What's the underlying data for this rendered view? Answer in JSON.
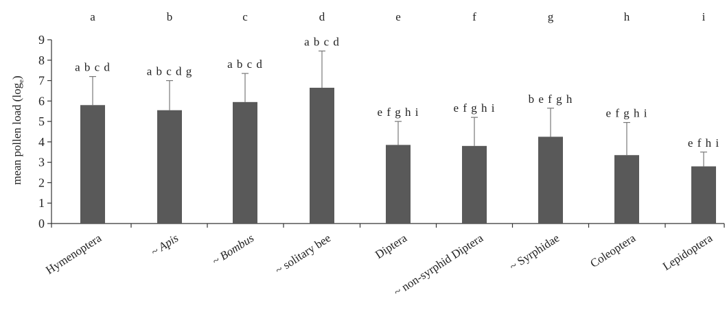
{
  "chart_data": {
    "type": "bar",
    "title": "",
    "xlabel": "",
    "ylabel": "mean pollen load (log",
    "ylabel_subscript": "e",
    "ylabel_close": ")",
    "ylim": [
      0,
      9
    ],
    "yticks": [
      "0",
      "1",
      "2",
      "3",
      "4",
      "5",
      "6",
      "7",
      "8",
      "9"
    ],
    "grid": false,
    "bar_color": "#595959",
    "categories": [
      "Hymenoptera",
      "~ Apis",
      "~ Bombus",
      "~ solitary bee",
      "Diptera",
      "~ non-syrphid Diptera",
      "~ Syrphidae",
      "Coleoptera",
      "Lepidoptera"
    ],
    "italic_categories": [
      false,
      true,
      true,
      false,
      false,
      false,
      false,
      false,
      false
    ],
    "column_letters": [
      "a",
      "b",
      "c",
      "d",
      "e",
      "f",
      "g",
      "h",
      "i"
    ],
    "values": [
      5.8,
      5.55,
      5.95,
      6.65,
      3.85,
      3.8,
      4.25,
      3.35,
      2.8
    ],
    "error_upper": [
      7.2,
      7.0,
      7.35,
      8.45,
      5.0,
      5.2,
      5.65,
      4.95,
      3.5
    ],
    "significance_labels": [
      "a b c d",
      "a b c d g",
      "a b c d",
      "a b c d",
      "e f g h i",
      "e f g h i",
      "b e f g h",
      "e f g h i",
      "e f h i"
    ]
  }
}
